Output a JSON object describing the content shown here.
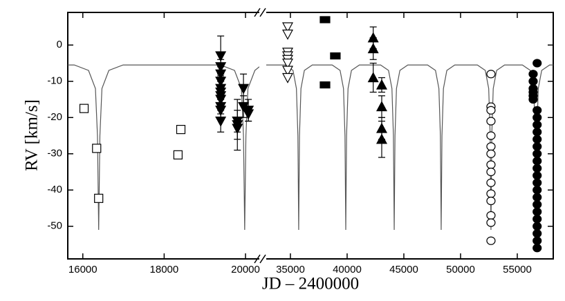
{
  "chart_data": {
    "type": "scatter",
    "xlabel": "JD – 2400000",
    "ylabel": "RV [km/s]",
    "ylim": [
      -59,
      9
    ],
    "yticks": [
      0,
      -10,
      -20,
      -30,
      -40,
      -50
    ],
    "x_segments": [
      {
        "xlim": [
          15630,
          20340
        ],
        "xticks": [
          16000,
          18000,
          20000
        ]
      },
      {
        "xlim": [
          32870,
          58170
        ],
        "xticks": [
          35000,
          40000,
          45000,
          50000,
          55000
        ]
      }
    ],
    "series": [
      {
        "type": "line",
        "segment": 0,
        "color": "#555555",
        "x": [
          15630,
          15790,
          16140,
          16310,
          16360,
          16390,
          16420,
          16470,
          16640,
          16990,
          19380,
          19730,
          19900,
          19950,
          19980,
          20010,
          20060,
          20230,
          20340
        ],
        "values": [
          -5.5,
          -5.5,
          -7,
          -12,
          -25,
          -51,
          -25,
          -12,
          -7,
          -5.5,
          -5.5,
          -7,
          -12,
          -25,
          -51,
          -25,
          -12,
          -7,
          -6
        ]
      },
      {
        "type": "line",
        "segment": 1,
        "color": "#555555",
        "x": [
          32870,
          34530,
          35230,
          35530,
          35660,
          35730,
          35800,
          35930,
          36230,
          36930,
          38680,
          39380,
          39680,
          39810,
          39880,
          39950,
          40080,
          40380,
          41080,
          42950,
          43650,
          43950,
          44080,
          44150,
          44220,
          44350,
          44650,
          45350,
          47090,
          47790,
          48090,
          48220,
          48290,
          48360,
          48490,
          48790,
          49490,
          51480,
          52180,
          52480,
          52610,
          52680,
          52750,
          52880,
          53180,
          53880,
          55450,
          56150,
          56450,
          56580,
          56650,
          56720,
          56850,
          57150,
          57850,
          58170
        ],
        "values": [
          -5.5,
          -5.5,
          -7,
          -12,
          -25,
          -51,
          -25,
          -12,
          -7,
          -5.5,
          -5.5,
          -7,
          -12,
          -25,
          -51,
          -25,
          -12,
          -7,
          -5.5,
          -5.5,
          -7,
          -12,
          -25,
          -51,
          -25,
          -12,
          -7,
          -5.5,
          -5.5,
          -7,
          -12,
          -25,
          -51,
          -25,
          -12,
          -7,
          -5.5,
          -5.5,
          -7,
          -12,
          -25,
          -51,
          -25,
          -12,
          -7,
          -5.5,
          -5.5,
          -7,
          -12,
          -25,
          -51,
          -25,
          -12,
          -7,
          -5.5,
          -5.5
        ]
      },
      {
        "type": "scatter",
        "segment": 0,
        "marker": "square",
        "filled": false,
        "color": "#000000",
        "x": [
          16030,
          16340,
          16390,
          18410,
          18340
        ],
        "values": [
          -17.5,
          -28.5,
          -42.3,
          -23.3,
          -30.3
        ]
      },
      {
        "type": "scatter",
        "segment": 0,
        "marker": "triangle-down",
        "filled": true,
        "color": "#000000",
        "x": [
          19390,
          19390,
          19390,
          19390,
          19390,
          19390,
          19390,
          19390,
          19390,
          19390,
          19390,
          19800,
          19800,
          19800,
          19950,
          19950,
          20070,
          20070
        ],
        "values": [
          -3,
          -6,
          -8,
          -10,
          -12,
          -13,
          -14,
          -15,
          -17,
          -18,
          -21,
          -21,
          -22,
          -23,
          -12,
          -17,
          -18,
          -19
        ],
        "errors": [
          5.5,
          2,
          2,
          2,
          2,
          2,
          2,
          2,
          2,
          2,
          3,
          3,
          7,
          3,
          4,
          3,
          3,
          2
        ]
      },
      {
        "type": "scatter",
        "segment": 1,
        "marker": "triangle-down",
        "filled": false,
        "color": "#000000",
        "x": [
          34760,
          34760,
          34760,
          34760,
          34760,
          34760,
          34760,
          34760
        ],
        "values": [
          5,
          3,
          -2,
          -3,
          -4,
          -5,
          -7,
          -9
        ]
      },
      {
        "type": "scatter",
        "segment": 1,
        "marker": "rect",
        "filled": true,
        "color": "#000000",
        "x": [
          38050,
          38050,
          38960
        ],
        "values": [
          7,
          -11,
          -3
        ]
      },
      {
        "type": "scatter",
        "segment": 1,
        "marker": "triangle-up",
        "filled": true,
        "color": "#000000",
        "x": [
          42300,
          42300,
          42300,
          43050,
          43050,
          43050,
          43050
        ],
        "values": [
          2,
          -1,
          -9,
          -11,
          -17,
          -23,
          -26
        ],
        "errors": [
          3,
          3,
          4,
          2,
          3,
          3,
          5
        ]
      },
      {
        "type": "scatter",
        "segment": 1,
        "marker": "circle",
        "filled": false,
        "color": "#000000",
        "x": [
          52680,
          52680,
          52680,
          52680,
          52680,
          52680,
          52680,
          52680,
          52680,
          52680,
          52680,
          52680,
          52680,
          52680,
          52680
        ],
        "values": [
          -8,
          -17,
          -18,
          -21,
          -25,
          -28,
          -30,
          -33,
          -35,
          -38,
          -41,
          -43,
          -47,
          -49,
          -54
        ]
      },
      {
        "type": "scatter",
        "segment": 1,
        "marker": "circle",
        "filled": true,
        "color": "#000000",
        "x": [
          56400,
          56400,
          56400,
          56400,
          56400,
          56400,
          56750,
          56750,
          56750,
          56750,
          56750,
          56750,
          56750,
          56750,
          56750,
          56750,
          56750,
          56750,
          56750,
          56750,
          56750,
          56750,
          56750,
          56750,
          56750,
          56750,
          56750
        ],
        "values": [
          -8,
          -10,
          -12,
          -13,
          -14,
          -15,
          -5,
          -18,
          -20,
          -22,
          -24,
          -26,
          -28,
          -30,
          -32,
          -34,
          -36,
          -38,
          -40,
          -42,
          -44,
          -46,
          -48,
          -50,
          -52,
          -54,
          -56
        ]
      }
    ]
  }
}
